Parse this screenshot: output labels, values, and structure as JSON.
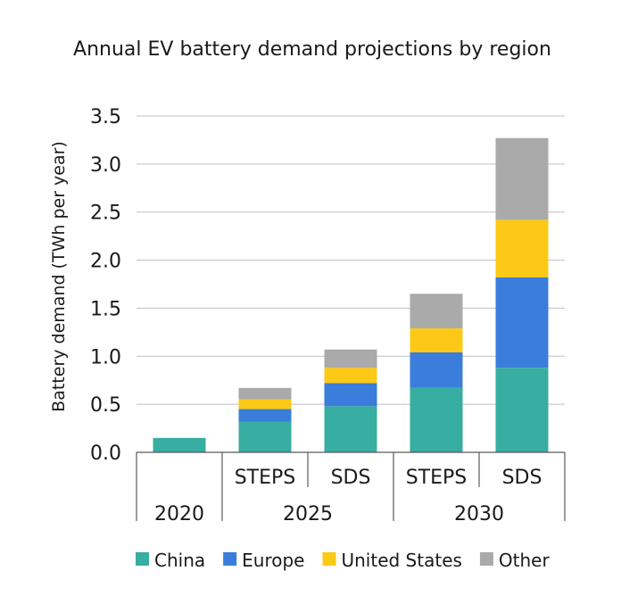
{
  "chart_data": {
    "type": "bar",
    "stacked": true,
    "title": "Annual EV battery demand projections by region",
    "xlabel": "",
    "ylabel": "Battery demand (TWh per year)",
    "ylim": [
      0,
      3.5
    ],
    "yticks": [
      "0.0",
      "0.5",
      "1.0",
      "1.5",
      "2.0",
      "2.5",
      "3.0",
      "3.5"
    ],
    "grid": true,
    "legend_position": "bottom",
    "groups": [
      {
        "label": "2020",
        "bars": [
          ""
        ]
      },
      {
        "label": "2025",
        "bars": [
          "STEPS",
          "SDS"
        ]
      },
      {
        "label": "2030",
        "bars": [
          "STEPS",
          "SDS"
        ]
      }
    ],
    "categories": [
      "2020",
      "2025 STEPS",
      "2025 SDS",
      "2030 STEPS",
      "2030 SDS"
    ],
    "series": [
      {
        "name": "China",
        "color": "#38ADA2",
        "values": [
          0.15,
          0.32,
          0.48,
          0.67,
          0.88
        ]
      },
      {
        "name": "Europe",
        "color": "#3A7DDA",
        "values": [
          0,
          0.13,
          0.24,
          0.37,
          0.94
        ]
      },
      {
        "name": "United States",
        "color": "#FCC917",
        "values": [
          0,
          0.1,
          0.16,
          0.25,
          0.6
        ]
      },
      {
        "name": "Other",
        "color": "#AAAAAA",
        "values": [
          0,
          0.12,
          0.19,
          0.36,
          0.85
        ]
      }
    ]
  }
}
